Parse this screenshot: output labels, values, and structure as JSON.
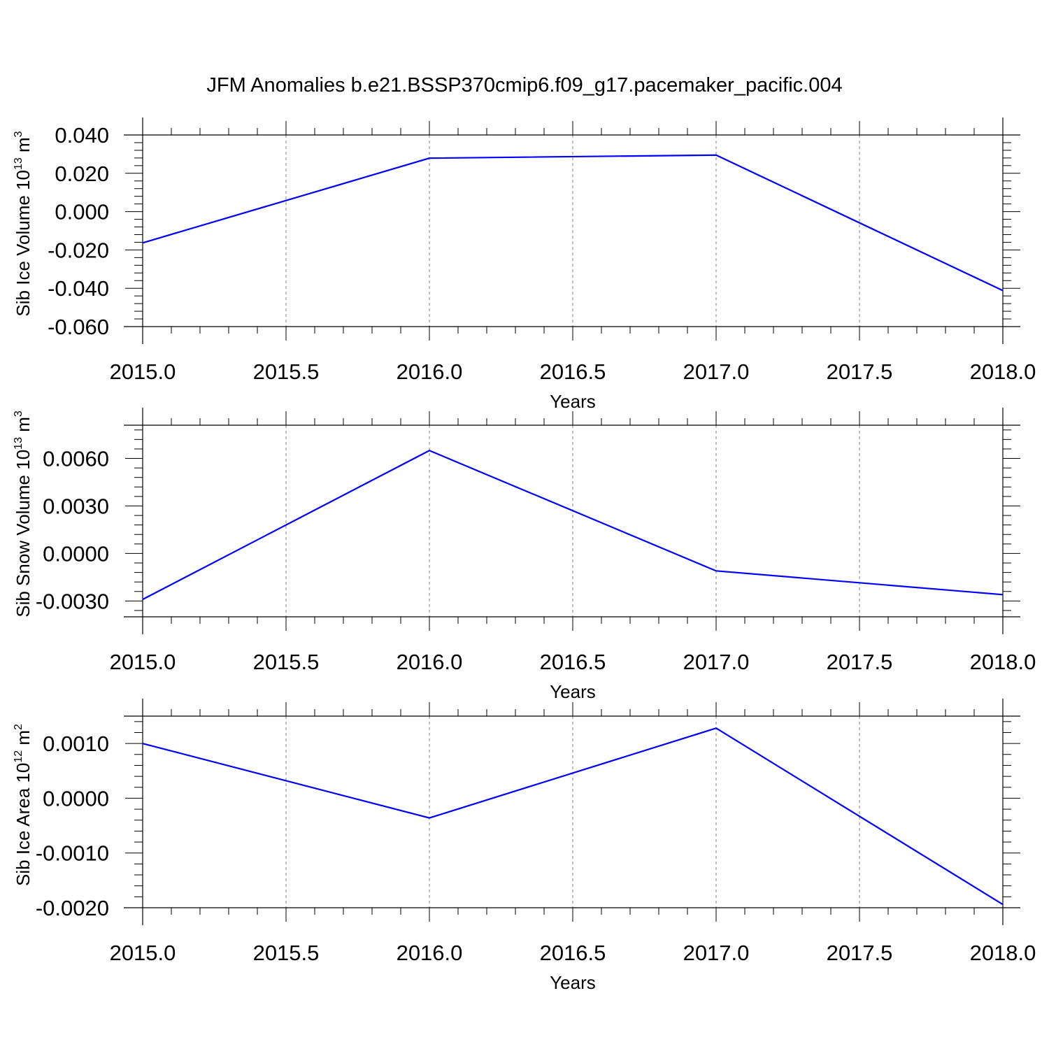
{
  "title": "JFM Anomalies b.e21.BSSP370cmip6.f09_g17.pacemaker_pacific.004",
  "chart_data": [
    {
      "type": "line",
      "ylabel": "Sib Ice Volume",
      "ylabel_units": {
        "base": "10",
        "exp": "13",
        "unit": "m",
        "unit_exp": "3"
      },
      "xlabel": "Years",
      "x": [
        2015,
        2016,
        2017,
        2018
      ],
      "xlim": [
        2015.0,
        2018.0
      ],
      "xticks": [
        "2015.0",
        "2015.5",
        "2016.0",
        "2016.5",
        "2017.0",
        "2017.5",
        "2018.0"
      ],
      "xtick_values": [
        2015.0,
        2015.5,
        2016.0,
        2016.5,
        2017.0,
        2017.5,
        2018.0
      ],
      "ylim": [
        -0.06,
        0.04
      ],
      "yticks": [
        "0.040",
        "0.020",
        "0.000",
        "-0.020",
        "-0.040",
        "-0.060"
      ],
      "ytick_values": [
        0.04,
        0.02,
        0.0,
        -0.02,
        -0.04,
        -0.06
      ],
      "series": [
        {
          "values": [
            -0.0163,
            0.0279,
            0.0295,
            -0.0412
          ],
          "color": "#0000ff"
        }
      ],
      "grid": "vertical dashed"
    },
    {
      "type": "line",
      "ylabel": "Sib Snow Volume",
      "ylabel_units": {
        "base": "10",
        "exp": "13",
        "unit": "m",
        "unit_exp": "3"
      },
      "xlabel": "Years",
      "x": [
        2015,
        2016,
        2017,
        2018
      ],
      "xlim": [
        2015.0,
        2018.0
      ],
      "xticks": [
        "2015.0",
        "2015.5",
        "2016.0",
        "2016.5",
        "2017.0",
        "2017.5",
        "2018.0"
      ],
      "xtick_values": [
        2015.0,
        2015.5,
        2016.0,
        2016.5,
        2017.0,
        2017.5,
        2018.0
      ],
      "ylim": [
        -0.004,
        0.0081
      ],
      "yticks": [
        "0.0060",
        "0.0030",
        "0.0000",
        "-0.0030"
      ],
      "ytick_values": [
        0.006,
        0.003,
        0.0,
        -0.003
      ],
      "series": [
        {
          "values": [
            -0.0029,
            0.0065,
            -0.0011,
            -0.0026
          ],
          "color": "#0000ff"
        }
      ],
      "grid": "vertical dashed"
    },
    {
      "type": "line",
      "ylabel": "Sib Ice Area",
      "ylabel_units": {
        "base": "10",
        "exp": "12",
        "unit": "m",
        "unit_exp": "2"
      },
      "xlabel": "Years",
      "x": [
        2015,
        2016,
        2017,
        2018
      ],
      "xlim": [
        2015.0,
        2018.0
      ],
      "xticks": [
        "2015.0",
        "2015.5",
        "2016.0",
        "2016.5",
        "2017.0",
        "2017.5",
        "2018.0"
      ],
      "xtick_values": [
        2015.0,
        2015.5,
        2016.0,
        2016.5,
        2017.0,
        2017.5,
        2018.0
      ],
      "ylim": [
        -0.002,
        0.0015
      ],
      "yticks": [
        "0.0010",
        "0.0000",
        "-0.0010",
        "-0.0020"
      ],
      "ytick_values": [
        0.001,
        0.0,
        -0.001,
        -0.002
      ],
      "series": [
        {
          "values": [
            0.001,
            -0.00036,
            0.00128,
            -0.00194
          ],
          "color": "#0000ff"
        }
      ],
      "grid": "vertical dashed"
    }
  ]
}
